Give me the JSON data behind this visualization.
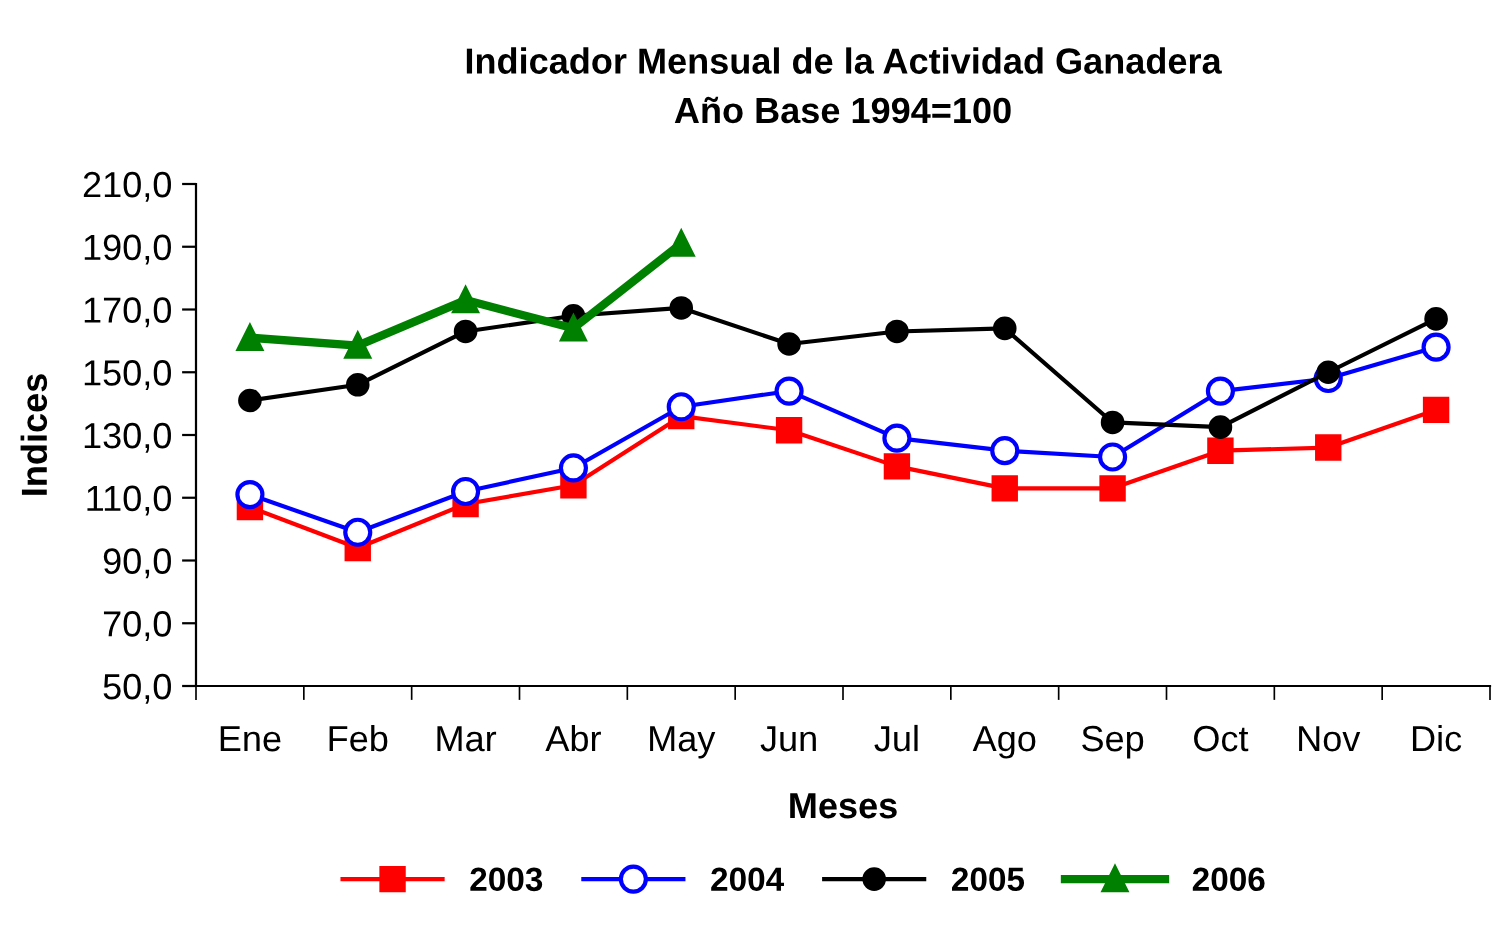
{
  "chart_data": {
    "type": "line",
    "title": "Indicador Mensual de la Actividad Ganadera\nAño Base 1994=100",
    "xlabel": "Meses",
    "ylabel": "Indices",
    "categories": [
      "Ene",
      "Feb",
      "Mar",
      "Abr",
      "May",
      "Jun",
      "Jul",
      "Ago",
      "Sep",
      "Oct",
      "Nov",
      "Dic"
    ],
    "series": [
      {
        "name": "2003",
        "color": "#ff0000",
        "marker": "square",
        "values": [
          107,
          94,
          108,
          114,
          136,
          131.5,
          120,
          113,
          113,
          125,
          126,
          138
        ]
      },
      {
        "name": "2004",
        "color": "#0000ff",
        "marker": "circle",
        "values": [
          111,
          99,
          112,
          119.5,
          139,
          144,
          129,
          125,
          123,
          144,
          148,
          158
        ]
      },
      {
        "name": "2005",
        "color": "#000000",
        "marker": "circle",
        "values": [
          141,
          146,
          163,
          168,
          170.5,
          159,
          163,
          164,
          134,
          132.5,
          150,
          167
        ]
      },
      {
        "name": "2006",
        "color": "#008000",
        "marker": "triangle",
        "values": [
          161,
          158.5,
          173,
          164,
          191,
          null,
          null,
          null,
          null,
          null,
          null,
          null
        ]
      }
    ],
    "ylim": [
      50,
      210
    ],
    "yticks": [
      {
        "value": 50,
        "label": "50,0"
      },
      {
        "value": 70,
        "label": "70,0"
      },
      {
        "value": 90,
        "label": "90,0"
      },
      {
        "value": 110,
        "label": "110,0"
      },
      {
        "value": 130,
        "label": "130,0"
      },
      {
        "value": 150,
        "label": "150,0"
      },
      {
        "value": 170,
        "label": "170,0"
      },
      {
        "value": 190,
        "label": "190,0"
      },
      {
        "value": 210,
        "label": "210,0"
      }
    ],
    "grid": false,
    "legend": "bottom"
  }
}
